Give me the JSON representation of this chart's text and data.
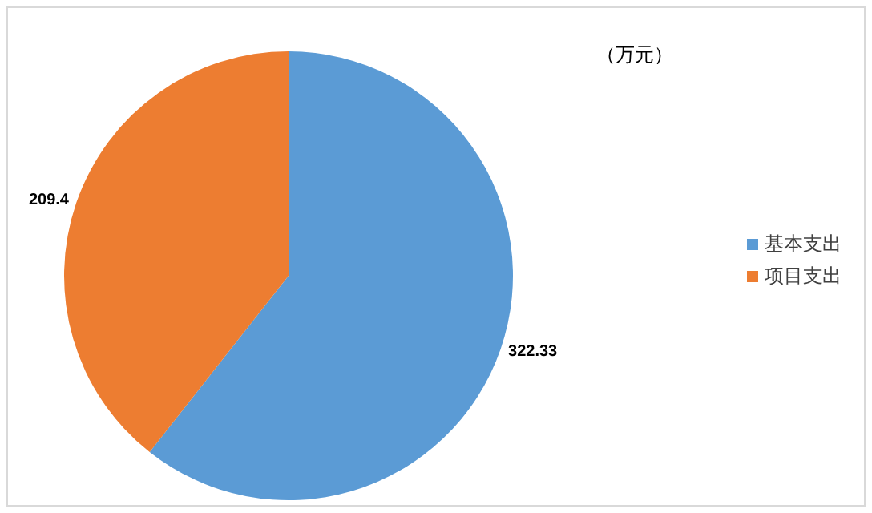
{
  "chart_data": {
    "type": "pie",
    "categories": [
      "基本支出",
      "项目支出"
    ],
    "values": [
      322.33,
      209.4
    ],
    "colors": [
      "#5b9bd5",
      "#ed7d31"
    ],
    "data_labels": true,
    "legend": "right",
    "annotations": [
      "（万元）"
    ]
  }
}
